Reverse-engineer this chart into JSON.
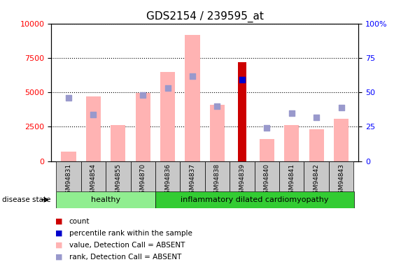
{
  "title": "GDS2154 / 239595_at",
  "samples": [
    "GSM94831",
    "GSM94854",
    "GSM94855",
    "GSM94870",
    "GSM94836",
    "GSM94837",
    "GSM94838",
    "GSM94839",
    "GSM94840",
    "GSM94841",
    "GSM94842",
    "GSM94843"
  ],
  "healthy_count": 4,
  "groups": [
    "healthy",
    "inflammatory dilated cardiomyopathy"
  ],
  "ylim_left": [
    0,
    10000
  ],
  "ylim_right": [
    0,
    100
  ],
  "yticks_left": [
    0,
    2500,
    5000,
    7500,
    10000
  ],
  "yticks_right": [
    0,
    25,
    50,
    75,
    100
  ],
  "values_pink": [
    700,
    4700,
    2600,
    4950,
    6500,
    9200,
    4100,
    0,
    1600,
    2600,
    2300,
    3100
  ],
  "ranks_blue_scaled": [
    4600,
    3400,
    0,
    4800,
    5300,
    6200,
    4000,
    0,
    2400,
    3500,
    3200,
    3900
  ],
  "count_red": [
    0,
    0,
    0,
    0,
    0,
    0,
    0,
    7200,
    0,
    0,
    0,
    0
  ],
  "count_rank_blue_scaled": [
    0,
    0,
    0,
    0,
    0,
    0,
    0,
    5900,
    0,
    0,
    0,
    0
  ],
  "pink_color": "#FFB3B3",
  "blue_color": "#9999CC",
  "red_color": "#CC0000",
  "dark_blue_color": "#0000CC",
  "healthy_bg": "#90EE90",
  "disease_bg": "#33CC33",
  "label_bg": "#C8C8C8",
  "title_fontsize": 11
}
